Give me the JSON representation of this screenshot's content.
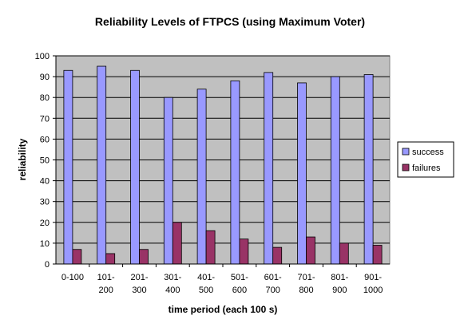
{
  "chart_data": {
    "type": "bar",
    "title": "Reliability Levels of FTPCS (using Maximum Voter)",
    "xlabel": "time period (each 100 s)",
    "ylabel": "reliability",
    "ylim": [
      0,
      100
    ],
    "yticks": [
      0,
      10,
      20,
      30,
      40,
      50,
      60,
      70,
      80,
      90,
      100
    ],
    "grid": true,
    "legend_position": "right",
    "categories": [
      [
        "0-100"
      ],
      [
        "101-",
        "200"
      ],
      [
        "201-",
        "300"
      ],
      [
        "301-",
        "400"
      ],
      [
        "401-",
        "500"
      ],
      [
        "501-",
        "600"
      ],
      [
        "601-",
        "700"
      ],
      [
        "701-",
        "800"
      ],
      [
        "801-",
        "900"
      ],
      [
        "901-",
        "1000"
      ]
    ],
    "series": [
      {
        "name": "success",
        "color": "#9999ff",
        "values": [
          93,
          95,
          93,
          80,
          84,
          88,
          92,
          87,
          90,
          91
        ]
      },
      {
        "name": "failures",
        "color": "#993366",
        "values": [
          7,
          5,
          7,
          20,
          16,
          12,
          8,
          13,
          10,
          9
        ]
      }
    ],
    "plot_background": "#c0c0c0"
  }
}
